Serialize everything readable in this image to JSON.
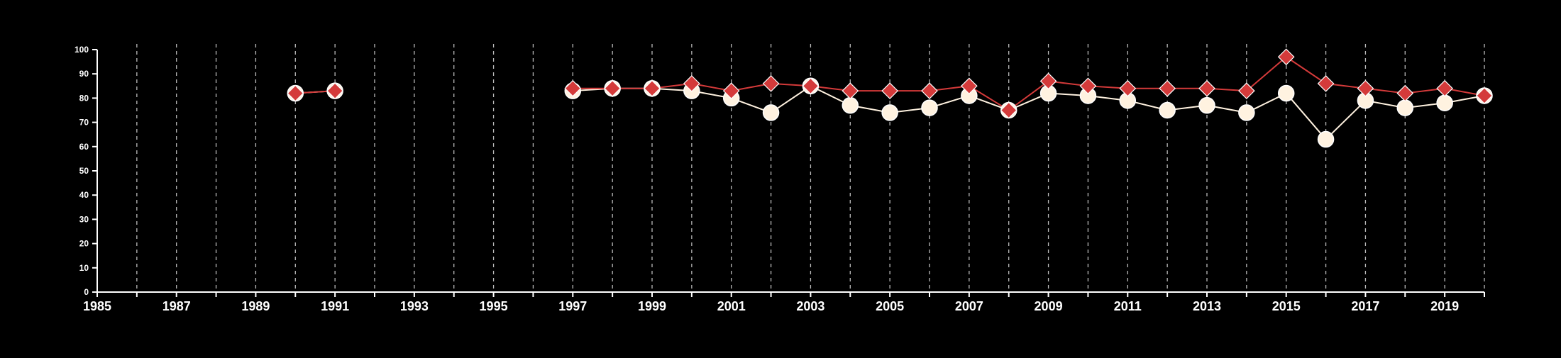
{
  "chart_data": {
    "type": "line",
    "title": "",
    "xlabel": "",
    "ylabel": "",
    "xlim": [
      1985,
      2020
    ],
    "ylim": [
      0,
      100
    ],
    "x_tick_labels": [
      "1985",
      "1987",
      "1989",
      "1991",
      "1993",
      "1995",
      "1997",
      "1999",
      "2001",
      "2003",
      "2005",
      "2007",
      "2009",
      "2011",
      "2013",
      "2015",
      "2017",
      "2019"
    ],
    "y_tick_labels": [
      "0",
      "10",
      "20",
      "30",
      "40",
      "50",
      "60",
      "70",
      "80",
      "90",
      "100"
    ],
    "grid": "vertical dashed lines at every year",
    "background": "#000000",
    "colors": {
      "series_a": "#fff2e0",
      "series_b": "#d43a3a",
      "axis": "#ffffff",
      "grid": "#bbbbbb"
    },
    "series": [
      {
        "marker": "circle",
        "color": "#fff2e0",
        "points": [
          {
            "x": 1990,
            "y": 82
          },
          {
            "x": 1991,
            "y": 83
          },
          {
            "x": 1997,
            "y": 83
          },
          {
            "x": 1998,
            "y": 84
          },
          {
            "x": 1999,
            "y": 84
          },
          {
            "x": 2000,
            "y": 83
          },
          {
            "x": 2001,
            "y": 80
          },
          {
            "x": 2002,
            "y": 74
          },
          {
            "x": 2003,
            "y": 85
          },
          {
            "x": 2004,
            "y": 77
          },
          {
            "x": 2005,
            "y": 74
          },
          {
            "x": 2006,
            "y": 76
          },
          {
            "x": 2007,
            "y": 81
          },
          {
            "x": 2008,
            "y": 75
          },
          {
            "x": 2009,
            "y": 82
          },
          {
            "x": 2010,
            "y": 81
          },
          {
            "x": 2011,
            "y": 79
          },
          {
            "x": 2012,
            "y": 75
          },
          {
            "x": 2013,
            "y": 77
          },
          {
            "x": 2014,
            "y": 74
          },
          {
            "x": 2015,
            "y": 82
          },
          {
            "x": 2016,
            "y": 63
          },
          {
            "x": 2017,
            "y": 79
          },
          {
            "x": 2018,
            "y": 76
          },
          {
            "x": 2019,
            "y": 78
          },
          {
            "x": 2020,
            "y": 81
          }
        ]
      },
      {
        "marker": "diamond",
        "color": "#d43a3a",
        "points": [
          {
            "x": 1990,
            "y": 82
          },
          {
            "x": 1991,
            "y": 83
          },
          {
            "x": 1997,
            "y": 84
          },
          {
            "x": 1998,
            "y": 84
          },
          {
            "x": 1999,
            "y": 84
          },
          {
            "x": 2000,
            "y": 86
          },
          {
            "x": 2001,
            "y": 83
          },
          {
            "x": 2002,
            "y": 86
          },
          {
            "x": 2003,
            "y": 85
          },
          {
            "x": 2004,
            "y": 83
          },
          {
            "x": 2005,
            "y": 83
          },
          {
            "x": 2006,
            "y": 83
          },
          {
            "x": 2007,
            "y": 85
          },
          {
            "x": 2008,
            "y": 75
          },
          {
            "x": 2009,
            "y": 87
          },
          {
            "x": 2010,
            "y": 85
          },
          {
            "x": 2011,
            "y": 84
          },
          {
            "x": 2012,
            "y": 84
          },
          {
            "x": 2013,
            "y": 84
          },
          {
            "x": 2014,
            "y": 83
          },
          {
            "x": 2015,
            "y": 97
          },
          {
            "x": 2016,
            "y": 86
          },
          {
            "x": 2017,
            "y": 84
          },
          {
            "x": 2018,
            "y": 82
          },
          {
            "x": 2019,
            "y": 84
          },
          {
            "x": 2020,
            "y": 81
          }
        ]
      }
    ]
  }
}
